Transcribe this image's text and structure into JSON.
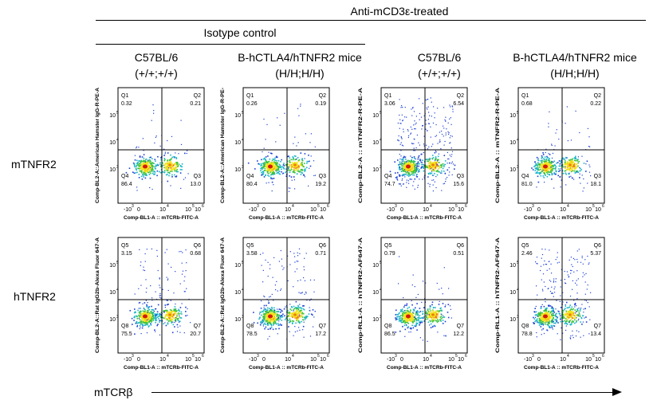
{
  "header": {
    "treated_label": "Anti-mCD3ε-treated",
    "isotype_label": "Isotype control",
    "columns": [
      {
        "line1": "C57BL/6",
        "line2": "(+/+;+/+)"
      },
      {
        "line1": "B-hCTLA4/hTNFR2 mice",
        "line2": "(H/H;H/H)"
      },
      {
        "line1": "C57BL/6",
        "line2": "(+/+;+/+)"
      },
      {
        "line1": "B-hCTLA4/hTNFR2 mice",
        "line2": "(H/H;H/H)"
      }
    ]
  },
  "rows": [
    {
      "label": "mTNFR2"
    },
    {
      "label": "hTNFR2"
    }
  ],
  "x_axis_label": "mTCRβ",
  "chart_data": {
    "type": "scatter",
    "subtype": "flow-cytometry-density-quadrant",
    "x_ticks": [
      "-10",
      "0",
      "10",
      "10",
      "10"
    ],
    "x_tick_exps": [
      "3",
      "",
      "4",
      "5",
      "6"
    ],
    "y_ticks": [
      "10",
      "10",
      "10"
    ],
    "y_tick_exps": [
      "3",
      "4",
      "5"
    ],
    "xlabel": "Comp-BL1-A :: mTCRb-FITC-A",
    "plots": [
      {
        "row": 0,
        "col": 0,
        "ylabel": "Comp-BL2-A::American Hamster IgG-R-PE-A",
        "quadrants": {
          "top_left": {
            "name": "Q1",
            "value": "0.32"
          },
          "top_right": {
            "name": "Q2",
            "value": "0.21"
          },
          "bottom_left": {
            "name": "Q4",
            "value": "86.4"
          },
          "bottom_right": {
            "name": "Q3",
            "value": "13.0"
          }
        }
      },
      {
        "row": 0,
        "col": 1,
        "ylabel": "Comp-BL2-A::American Hamster IgG-R-PE-",
        "quadrants": {
          "top_left": {
            "name": "Q1",
            "value": "0.26"
          },
          "top_right": {
            "name": "Q2",
            "value": "0.19"
          },
          "bottom_left": {
            "name": "Q4",
            "value": "80.4"
          },
          "bottom_right": {
            "name": "Q3",
            "value": "19.2"
          }
        }
      },
      {
        "row": 0,
        "col": 2,
        "ylabel": "Comp-BL2-A :: mTNFR2-R-PE-A",
        "quadrants": {
          "top_left": {
            "name": "Q1",
            "value": "3.06"
          },
          "top_right": {
            "name": "Q2",
            "value": "6.54"
          },
          "bottom_left": {
            "name": "Q4",
            "value": "74.7"
          },
          "bottom_right": {
            "name": "Q3",
            "value": "15.6"
          }
        }
      },
      {
        "row": 0,
        "col": 3,
        "ylabel": "Comp-BL2-A :: mTNFR2-R-PE-A",
        "quadrants": {
          "top_left": {
            "name": "Q1",
            "value": "0.68"
          },
          "top_right": {
            "name": "Q2",
            "value": "0.22"
          },
          "bottom_left": {
            "name": "Q4",
            "value": "81.0"
          },
          "bottom_right": {
            "name": "Q3",
            "value": "18.1"
          }
        }
      },
      {
        "row": 1,
        "col": 0,
        "ylabel": "Comp-BL2-A::Rat IgG2b-Alexa Fluor 647-A",
        "quadrants": {
          "top_left": {
            "name": "Q5",
            "value": "3.15"
          },
          "top_right": {
            "name": "Q6",
            "value": "0.68"
          },
          "bottom_left": {
            "name": "Q8",
            "value": "75.5"
          },
          "bottom_right": {
            "name": "Q7",
            "value": "20.7"
          }
        }
      },
      {
        "row": 1,
        "col": 1,
        "ylabel": "Comp-BL2-A::Rat IgG2b-Alexa Fluor 647-A",
        "quadrants": {
          "top_left": {
            "name": "Q5",
            "value": "3.58"
          },
          "top_right": {
            "name": "Q6",
            "value": "0.71"
          },
          "bottom_left": {
            "name": "Q8",
            "value": "78.5"
          },
          "bottom_right": {
            "name": "Q7",
            "value": "17.2"
          }
        }
      },
      {
        "row": 1,
        "col": 2,
        "ylabel": "Comp-RL1-A :: hTNFR2-AF647-A",
        "quadrants": {
          "top_left": {
            "name": "Q5",
            "value": "0.79"
          },
          "top_right": {
            "name": "Q6",
            "value": "0.51"
          },
          "bottom_left": {
            "name": "Q8",
            "value": "86.5"
          },
          "bottom_right": {
            "name": "Q7",
            "value": "12.2"
          }
        }
      },
      {
        "row": 1,
        "col": 3,
        "ylabel": "Comp-RL1-A :: hTNFR2-AF647-A",
        "quadrants": {
          "top_left": {
            "name": "Q5",
            "value": "2.46"
          },
          "top_right": {
            "name": "Q6",
            "value": "5.37"
          },
          "bottom_left": {
            "name": "Q8",
            "value": "78.8"
          },
          "bottom_right": {
            "name": "Q7",
            "value": "13.4"
          }
        }
      }
    ]
  }
}
